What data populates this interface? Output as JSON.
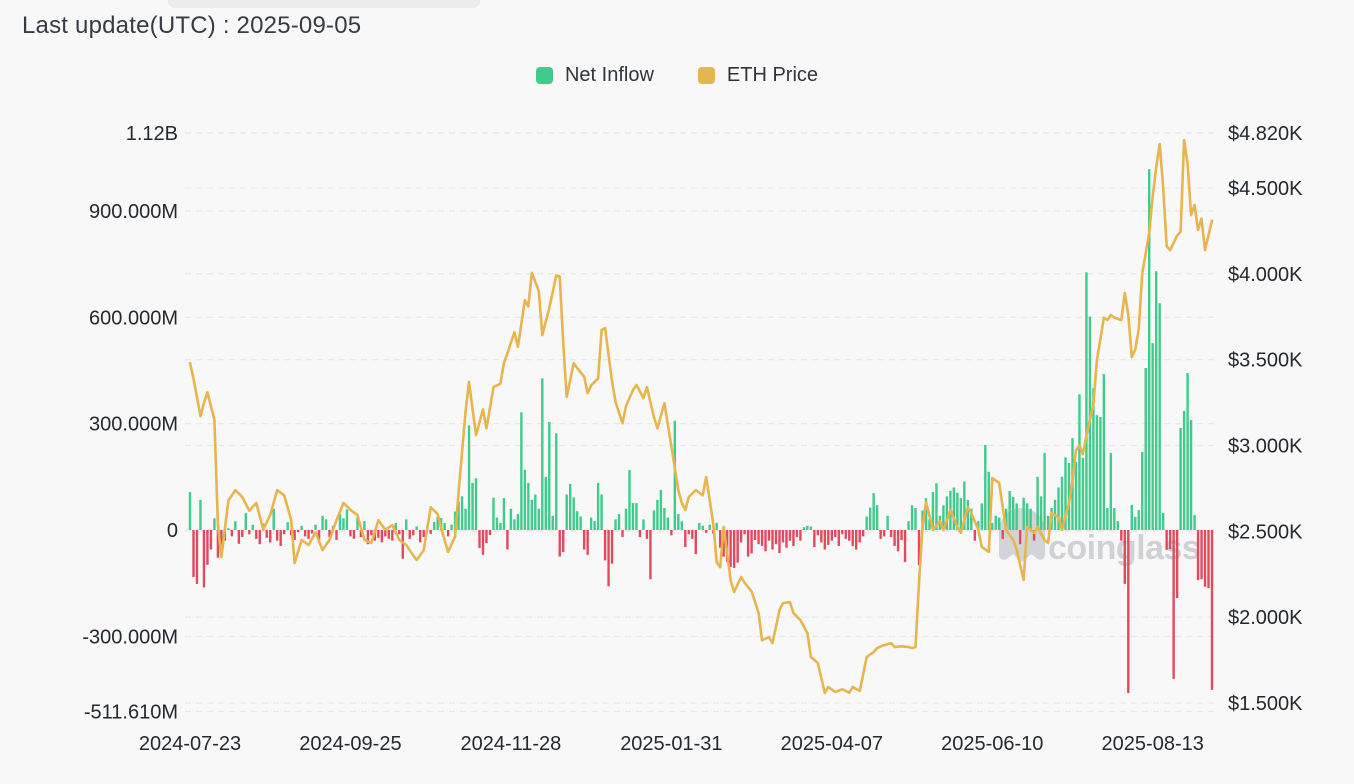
{
  "header": {
    "title": "Last update(UTC) : 2025-09-05"
  },
  "legend": [
    {
      "label": "Net Inflow",
      "color": "#3ecb8c"
    },
    {
      "label": "ETH Price",
      "color": "#e7b54e"
    }
  ],
  "watermark": {
    "text": "coinglass",
    "icon": "ghost-icon",
    "color": "#c9cbce"
  },
  "colors": {
    "background": "#f8f8f9",
    "positive_bar": "#3ecb8c",
    "negative_bar": "#e2495d",
    "price_line": "#e8b44d",
    "gridline": "#e7e8ea",
    "tick_text": "#24292f"
  },
  "axes": {
    "left_ticks": [
      {
        "label": "1.12B",
        "value": 1120
      },
      {
        "label": "900.000M",
        "value": 900
      },
      {
        "label": "600.000M",
        "value": 600
      },
      {
        "label": "300.000M",
        "value": 300
      },
      {
        "label": "0",
        "value": 0
      },
      {
        "label": "-300.000M",
        "value": -300
      },
      {
        "label": "-511.610M",
        "value": -511.61
      }
    ],
    "right_ticks": [
      {
        "label": "$4.820K",
        "value": 4820
      },
      {
        "label": "$4.500K",
        "value": 4500
      },
      {
        "label": "$4.000K",
        "value": 4000
      },
      {
        "label": "$3.500K",
        "value": 3500
      },
      {
        "label": "$3.000K",
        "value": 3000
      },
      {
        "label": "$2.500K",
        "value": 2500
      },
      {
        "label": "$2.000K",
        "value": 2000
      },
      {
        "label": "$1.500K",
        "value": 1500
      }
    ],
    "x_ticks": [
      {
        "label": "2024-07-23",
        "index": 0
      },
      {
        "label": "2024-09-25",
        "index": 46
      },
      {
        "label": "2024-11-28",
        "index": 92
      },
      {
        "label": "2025-01-31",
        "index": 138
      },
      {
        "label": "2025-04-07",
        "index": 184
      },
      {
        "label": "2025-06-10",
        "index": 230
      },
      {
        "label": "2025-08-13",
        "index": 276
      }
    ]
  },
  "chart_data": {
    "type": "bar+line combo",
    "title": "ETH ETF daily net inflow (bars, left axis, USD) vs ETH price (line, right axis, USD)",
    "x_unit": "business days",
    "x_start_date": "2024-07-23",
    "x_end_date": "2025-09-05",
    "left_axis": {
      "unit": "USD millions",
      "min": -511.61,
      "max": 1120
    },
    "right_axis": {
      "unit": "USD",
      "min": 1500,
      "max": 4820
    },
    "legend_position": "top-center",
    "grid": "horizontal dashed",
    "series": [
      {
        "name": "Net Inflow",
        "type": "bar",
        "unit": "USD millions",
        "values": [
          107,
          -133,
          -152,
          85,
          -162,
          -98,
          -55,
          33,
          -78,
          -47,
          -30,
          5,
          -18,
          25,
          -39,
          -20,
          48,
          -12,
          15,
          -25,
          -40,
          18,
          -22,
          -35,
          60,
          -30,
          -45,
          -12,
          22,
          -15,
          -28,
          -6,
          12,
          -18,
          -25,
          -10,
          15,
          -35,
          40,
          30,
          -20,
          12,
          -28,
          45,
          33,
          58,
          -18,
          -25,
          35,
          -20,
          25,
          -40,
          -15,
          -30,
          -22,
          -35,
          -18,
          -25,
          -30,
          20,
          -12,
          -81,
          30,
          -25,
          -15,
          10,
          -35,
          -20,
          12,
          -11,
          23,
          37,
          34,
          20,
          -18,
          15,
          52,
          80,
          95,
          60,
          295,
          133,
          146,
          -51,
          -70,
          -37,
          -14,
          91,
          35,
          20,
          90,
          -55,
          60,
          30,
          45,
          332,
          170,
          133,
          85,
          100,
          60,
          428,
          150,
          305,
          40,
          273,
          -75,
          -62,
          100,
          130,
          92,
          53,
          38,
          -55,
          -70,
          35,
          25,
          133,
          100,
          -86,
          -159,
          -95,
          30,
          45,
          -20,
          60,
          169,
          76,
          76,
          -20,
          30,
          -25,
          -139,
          55,
          85,
          113,
          62,
          35,
          -15,
          308,
          45,
          25,
          -48,
          -12,
          -25,
          -68,
          20,
          12,
          -8,
          15,
          -10,
          20,
          -50,
          -75,
          -90,
          -104,
          -107,
          -92,
          -35,
          -12,
          -75,
          -66,
          -28,
          -40,
          -45,
          -60,
          -30,
          -55,
          -40,
          -65,
          -35,
          -50,
          -30,
          -45,
          -20,
          -30,
          8,
          12,
          10,
          -48,
          -15,
          -35,
          -55,
          -42,
          -30,
          -20,
          -45,
          -12,
          -25,
          -30,
          -45,
          -55,
          -35,
          -18,
          38,
          63,
          104,
          70,
          -25,
          -18,
          40,
          -20,
          -45,
          -60,
          -28,
          -90,
          25,
          70,
          62,
          -99,
          55,
          90,
          30,
          107,
          132,
          40,
          70,
          95,
          110,
          120,
          105,
          90,
          137,
          85,
          60,
          -30,
          25,
          75,
          240,
          164,
          20,
          40,
          35,
          -25,
          60,
          110,
          93,
          75,
          -40,
          91,
          75,
          60,
          -30,
          150,
          95,
          217,
          40,
          62,
          85,
          120,
          150,
          205,
          189,
          259,
          192,
          383,
          204,
          727,
          602,
          400,
          324,
          319,
          440,
          62,
          217,
          62,
          25,
          -30,
          -152,
          -460,
          71,
          37,
          56,
          220,
          457,
          1018,
          527,
          730,
          640,
          48,
          -56,
          -54,
          -420,
          -192,
          288,
          336,
          443,
          310,
          42,
          -141,
          -139,
          -160,
          -164,
          -451
        ]
      },
      {
        "name": "ETH Price",
        "type": "line",
        "unit": "USD",
        "points": [
          [
            0,
            3480
          ],
          [
            1,
            3390
          ],
          [
            3,
            3170
          ],
          [
            4,
            3250
          ],
          [
            5,
            3310
          ],
          [
            7,
            3150
          ],
          [
            8,
            2540
          ],
          [
            9,
            2350
          ],
          [
            11,
            2680
          ],
          [
            13,
            2740
          ],
          [
            15,
            2700
          ],
          [
            17,
            2620
          ],
          [
            19,
            2665
          ],
          [
            21,
            2510
          ],
          [
            23,
            2595
          ],
          [
            25,
            2740
          ],
          [
            27,
            2710
          ],
          [
            29,
            2565
          ],
          [
            30,
            2315
          ],
          [
            32,
            2450
          ],
          [
            34,
            2420
          ],
          [
            36,
            2495
          ],
          [
            38,
            2390
          ],
          [
            40,
            2450
          ],
          [
            42,
            2565
          ],
          [
            44,
            2665
          ],
          [
            46,
            2625
          ],
          [
            48,
            2595
          ],
          [
            50,
            2450
          ],
          [
            52,
            2432
          ],
          [
            54,
            2565
          ],
          [
            56,
            2510
          ],
          [
            58,
            2536
          ],
          [
            60,
            2450
          ],
          [
            62,
            2420
          ],
          [
            64,
            2360
          ],
          [
            65,
            2333
          ],
          [
            67,
            2390
          ],
          [
            69,
            2640
          ],
          [
            71,
            2600
          ],
          [
            72,
            2520
          ],
          [
            74,
            2380
          ],
          [
            76,
            2470
          ],
          [
            77,
            2730
          ],
          [
            79,
            3200
          ],
          [
            80,
            3370
          ],
          [
            82,
            3060
          ],
          [
            84,
            3210
          ],
          [
            85,
            3100
          ],
          [
            87,
            3340
          ],
          [
            89,
            3360
          ],
          [
            90,
            3480
          ],
          [
            91,
            3537
          ],
          [
            93,
            3660
          ],
          [
            94,
            3575
          ],
          [
            96,
            3847
          ],
          [
            97,
            3810
          ],
          [
            98,
            4005
          ],
          [
            100,
            3900
          ],
          [
            101,
            3643
          ],
          [
            103,
            3800
          ],
          [
            105,
            3990
          ],
          [
            106,
            3985
          ],
          [
            107,
            3600
          ],
          [
            108,
            3283
          ],
          [
            110,
            3480
          ],
          [
            111,
            3450
          ],
          [
            113,
            3400
          ],
          [
            114,
            3305
          ],
          [
            115,
            3350
          ],
          [
            117,
            3390
          ],
          [
            118,
            3672
          ],
          [
            119,
            3684
          ],
          [
            121,
            3370
          ],
          [
            122,
            3254
          ],
          [
            124,
            3130
          ],
          [
            125,
            3230
          ],
          [
            127,
            3323
          ],
          [
            128,
            3352
          ],
          [
            130,
            3276
          ],
          [
            131,
            3340
          ],
          [
            133,
            3166
          ],
          [
            134,
            3100
          ],
          [
            136,
            3247
          ],
          [
            139,
            2868
          ],
          [
            140,
            2740
          ],
          [
            141,
            2665
          ],
          [
            142,
            2624
          ],
          [
            143,
            2700
          ],
          [
            145,
            2740
          ],
          [
            147,
            2710
          ],
          [
            148,
            2816
          ],
          [
            150,
            2548
          ],
          [
            151,
            2320
          ],
          [
            152,
            2291
          ],
          [
            153,
            2525
          ],
          [
            155,
            2216
          ],
          [
            156,
            2146
          ],
          [
            158,
            2234
          ],
          [
            159,
            2200
          ],
          [
            161,
            2150
          ],
          [
            163,
            2024
          ],
          [
            164,
            1866
          ],
          [
            166,
            1884
          ],
          [
            167,
            1849
          ],
          [
            169,
            2041
          ],
          [
            170,
            2082
          ],
          [
            172,
            2088
          ],
          [
            173,
            2024
          ],
          [
            175,
            1983
          ],
          [
            177,
            1907
          ],
          [
            178,
            1768
          ],
          [
            180,
            1733
          ],
          [
            182,
            1558
          ],
          [
            183,
            1593
          ],
          [
            185,
            1564
          ],
          [
            187,
            1580
          ],
          [
            189,
            1560
          ],
          [
            190,
            1593
          ],
          [
            192,
            1570
          ],
          [
            194,
            1768
          ],
          [
            196,
            1797
          ],
          [
            197,
            1820
          ],
          [
            199,
            1837
          ],
          [
            201,
            1849
          ],
          [
            202,
            1826
          ],
          [
            204,
            1830
          ],
          [
            206,
            1826
          ],
          [
            207,
            1820
          ],
          [
            208,
            1826
          ],
          [
            209,
            2200
          ],
          [
            210,
            2525
          ],
          [
            211,
            2671
          ],
          [
            213,
            2507
          ],
          [
            215,
            2560
          ],
          [
            216,
            2507
          ],
          [
            218,
            2624
          ],
          [
            220,
            2525
          ],
          [
            221,
            2490
          ],
          [
            223,
            2641
          ],
          [
            224,
            2606
          ],
          [
            226,
            2510
          ],
          [
            227,
            2409
          ],
          [
            229,
            2380
          ],
          [
            230,
            2810
          ],
          [
            232,
            2781
          ],
          [
            233,
            2641
          ],
          [
            234,
            2507
          ],
          [
            236,
            2449
          ],
          [
            237,
            2391
          ],
          [
            239,
            2216
          ],
          [
            240,
            2525
          ],
          [
            242,
            2490
          ],
          [
            243,
            2525
          ],
          [
            245,
            2449
          ],
          [
            246,
            2432
          ],
          [
            247,
            2606
          ],
          [
            249,
            2583
          ],
          [
            250,
            2507
          ],
          [
            252,
            2665
          ],
          [
            253,
            2799
          ],
          [
            254,
            2973
          ],
          [
            255,
            3000
          ],
          [
            256,
            2950
          ],
          [
            257,
            3060
          ],
          [
            259,
            3240
          ],
          [
            260,
            3497
          ],
          [
            261,
            3620
          ],
          [
            262,
            3745
          ],
          [
            263,
            3730
          ],
          [
            264,
            3760
          ],
          [
            265,
            3745
          ],
          [
            267,
            3730
          ],
          [
            268,
            3888
          ],
          [
            269,
            3760
          ],
          [
            270,
            3515
          ],
          [
            271,
            3560
          ],
          [
            272,
            3680
          ],
          [
            273,
            4000
          ],
          [
            275,
            4240
          ],
          [
            276,
            4450
          ],
          [
            277,
            4620
          ],
          [
            278,
            4756
          ],
          [
            279,
            4500
          ],
          [
            280,
            4160
          ],
          [
            281,
            4138
          ],
          [
            283,
            4222
          ],
          [
            284,
            4245
          ],
          [
            285,
            4779
          ],
          [
            286,
            4640
          ],
          [
            287,
            4342
          ],
          [
            288,
            4400
          ],
          [
            289,
            4255
          ],
          [
            290,
            4322
          ],
          [
            291,
            4138
          ],
          [
            292,
            4226
          ],
          [
            293,
            4310
          ]
        ]
      }
    ]
  }
}
